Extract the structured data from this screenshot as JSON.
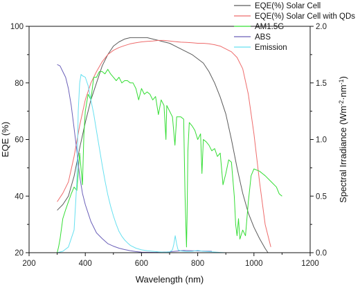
{
  "chart_data": {
    "type": "line",
    "xlabel": "Wavelength (nm)",
    "ylabel_left": "EQE (%)",
    "ylabel_right_parts": [
      "Spectral Irradiance (Wm",
      "-2",
      "·nm",
      "-1",
      ")"
    ],
    "xlim": [
      200,
      1200
    ],
    "ylim_left": [
      20,
      100
    ],
    "ylim_right": [
      0.0,
      2.0
    ],
    "x_ticks": [
      "200",
      "400",
      "600",
      "800",
      "1000",
      "1200"
    ],
    "y_left_ticks": [
      "20",
      "40",
      "60",
      "80",
      "100"
    ],
    "y_right_ticks": [
      "0.0",
      "0.5",
      "1.0",
      "1.5",
      "2.0"
    ],
    "legend_position": "top-right",
    "series": [
      {
        "name": "EQE(%) Solar Cell",
        "color": "#5a5a5a",
        "axis": "left",
        "x": [
          300,
          320,
          340,
          360,
          380,
          400,
          420,
          440,
          460,
          480,
          500,
          520,
          540,
          560,
          580,
          600,
          620,
          640,
          660,
          680,
          700,
          720,
          740,
          760,
          780,
          800,
          820,
          840,
          860,
          880,
          900,
          920,
          940,
          960,
          980,
          1000,
          1020,
          1040,
          1050
        ],
        "y": [
          35,
          37,
          40,
          47,
          57,
          66,
          74,
          80,
          86,
          90,
          93,
          94.5,
          95.5,
          96,
          96,
          96,
          96,
          95.5,
          95,
          94.5,
          94,
          93,
          92,
          91,
          90,
          88.5,
          87,
          84,
          80,
          75,
          69,
          60,
          50,
          41,
          34,
          29,
          25,
          21.5,
          20
        ]
      },
      {
        "name": "EQE(%) Solar Cell with QDs",
        "color": "#ee6b6b",
        "axis": "left",
        "x": [
          300,
          320,
          340,
          360,
          380,
          400,
          420,
          440,
          460,
          480,
          500,
          520,
          540,
          560,
          580,
          600,
          620,
          640,
          660,
          680,
          700,
          720,
          740,
          760,
          780,
          800,
          820,
          840,
          860,
          880,
          900,
          920,
          940,
          960,
          980,
          1000,
          1020,
          1040,
          1060
        ],
        "y": [
          38,
          41,
          45,
          54,
          65,
          74,
          80,
          84,
          87.5,
          90,
          91.5,
          92.5,
          93.2,
          93.8,
          94.2,
          94.5,
          94.7,
          94.8,
          95,
          95,
          94.8,
          94.6,
          94.4,
          94.3,
          94.2,
          94,
          94,
          93.8,
          93.5,
          93,
          92,
          91,
          89,
          85,
          76,
          62,
          45,
          30,
          22
        ]
      },
      {
        "name": "AM1.5G",
        "color": "#33dd33",
        "axis": "right",
        "x": [
          300,
          305,
          310,
          320,
          330,
          340,
          350,
          360,
          370,
          380,
          390,
          395,
          400,
          410,
          420,
          430,
          440,
          450,
          460,
          470,
          480,
          490,
          500,
          510,
          520,
          530,
          540,
          550,
          560,
          570,
          580,
          590,
          600,
          610,
          620,
          630,
          640,
          650,
          660,
          670,
          680,
          687,
          690,
          700,
          710,
          719,
          725,
          730,
          740,
          750,
          755,
          760,
          762,
          765,
          770,
          780,
          790,
          800,
          810,
          815,
          820,
          830,
          840,
          850,
          860,
          870,
          880,
          890,
          900,
          910,
          920,
          930,
          935,
          940,
          945,
          950,
          960,
          970,
          980,
          990,
          1000,
          1020,
          1040,
          1060,
          1080,
          1090,
          1100
        ],
        "y": [
          0.0,
          0.05,
          0.12,
          0.3,
          0.38,
          0.45,
          0.52,
          0.58,
          0.55,
          0.88,
          0.6,
          1.05,
          1.25,
          1.4,
          1.35,
          1.55,
          1.55,
          1.6,
          1.6,
          1.58,
          1.62,
          1.58,
          1.55,
          1.52,
          1.55,
          1.5,
          1.52,
          1.52,
          1.5,
          1.5,
          1.45,
          1.35,
          1.45,
          1.4,
          1.42,
          1.4,
          1.35,
          1.38,
          1.22,
          1.35,
          1.3,
          1.0,
          1.3,
          1.25,
          1.2,
          0.95,
          1.2,
          1.2,
          1.2,
          1.18,
          0.5,
          0.05,
          0.3,
          0.9,
          1.15,
          1.12,
          1.08,
          1.0,
          1.05,
          0.7,
          1.0,
          0.98,
          0.95,
          0.9,
          0.92,
          0.85,
          0.88,
          0.6,
          0.7,
          0.82,
          0.8,
          0.5,
          0.25,
          0.15,
          0.3,
          0.12,
          0.2,
          0.15,
          0.45,
          0.68,
          0.74,
          0.72,
          0.68,
          0.63,
          0.58,
          0.52,
          0.5
        ]
      },
      {
        "name": "ABS",
        "color": "#6a5fb8",
        "axis": "left",
        "x": [
          300,
          310,
          320,
          330,
          340,
          350,
          360,
          370,
          380,
          390,
          400,
          420,
          440,
          460,
          480,
          500,
          520,
          540,
          560,
          580,
          600,
          650,
          700,
          750,
          800,
          850
        ],
        "y": [
          86.5,
          86,
          84,
          82,
          78,
          72,
          64,
          56,
          47,
          41,
          37,
          31,
          27,
          25,
          23.2,
          22.3,
          21.6,
          21.1,
          20.7,
          20.4,
          20.2,
          20.1,
          20.3,
          20.8,
          20.6,
          20.5
        ]
      },
      {
        "name": "Emission",
        "color": "#66e0f0",
        "axis": "left",
        "x": [
          300,
          320,
          340,
          360,
          370,
          375,
          380,
          385,
          390,
          400,
          410,
          420,
          430,
          440,
          450,
          460,
          470,
          480,
          490,
          500,
          510,
          520,
          530,
          540,
          550,
          560,
          580,
          600,
          620,
          640,
          660,
          680,
          700,
          710,
          715,
          720,
          725,
          730,
          740,
          760,
          780,
          800,
          820,
          850,
          880,
          900
        ],
        "y": [
          20,
          20.5,
          22,
          28,
          45,
          70,
          80,
          83,
          82.5,
          82,
          79,
          74,
          69,
          63,
          57,
          51,
          45.5,
          40.5,
          36.5,
          33,
          30,
          27.5,
          25.8,
          24.5,
          23.5,
          22.6,
          21.6,
          21,
          20.7,
          20.5,
          20.3,
          20.2,
          20.3,
          21,
          23,
          26,
          23,
          21,
          20.6,
          20.4,
          20.5,
          20.8,
          20.5,
          20.3,
          20.1,
          20
        ]
      }
    ]
  }
}
